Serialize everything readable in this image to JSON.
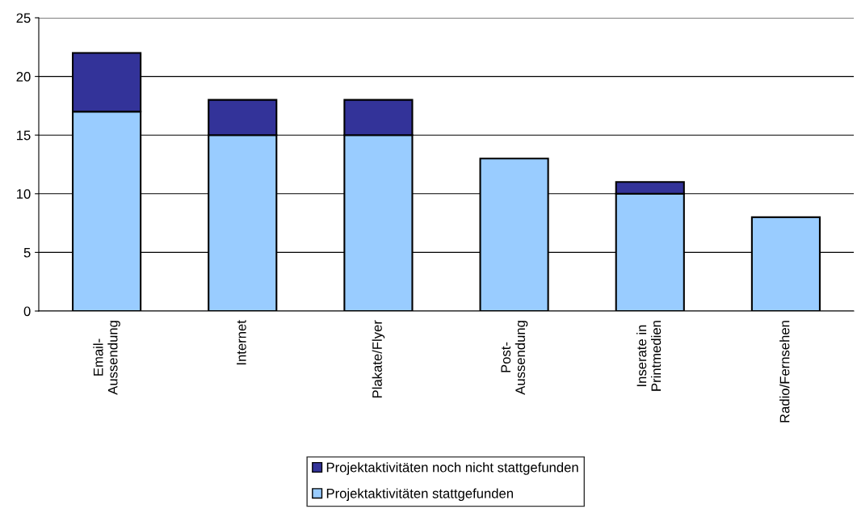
{
  "chart_data": {
    "type": "bar",
    "stacked": true,
    "categories": [
      "Email-\nAussendung",
      "Internet",
      "Plakate/Flyer",
      "Post-\nAussendung",
      "Inserate in\nPrintmedien",
      "Radio/Fernsehen"
    ],
    "series": [
      {
        "name": "Projektaktivitäten stattgefunden",
        "color": "#99ccff",
        "values": [
          17,
          15,
          15,
          13,
          10,
          8
        ]
      },
      {
        "name": "Projektaktivitäten noch nicht stattgefunden",
        "color": "#333399",
        "values": [
          5,
          3,
          3,
          null,
          1,
          null
        ]
      }
    ],
    "ylim": [
      0,
      25
    ],
    "yticks": [
      0,
      5,
      10,
      15,
      20,
      25
    ],
    "grid": "y",
    "legend": "bottom"
  }
}
